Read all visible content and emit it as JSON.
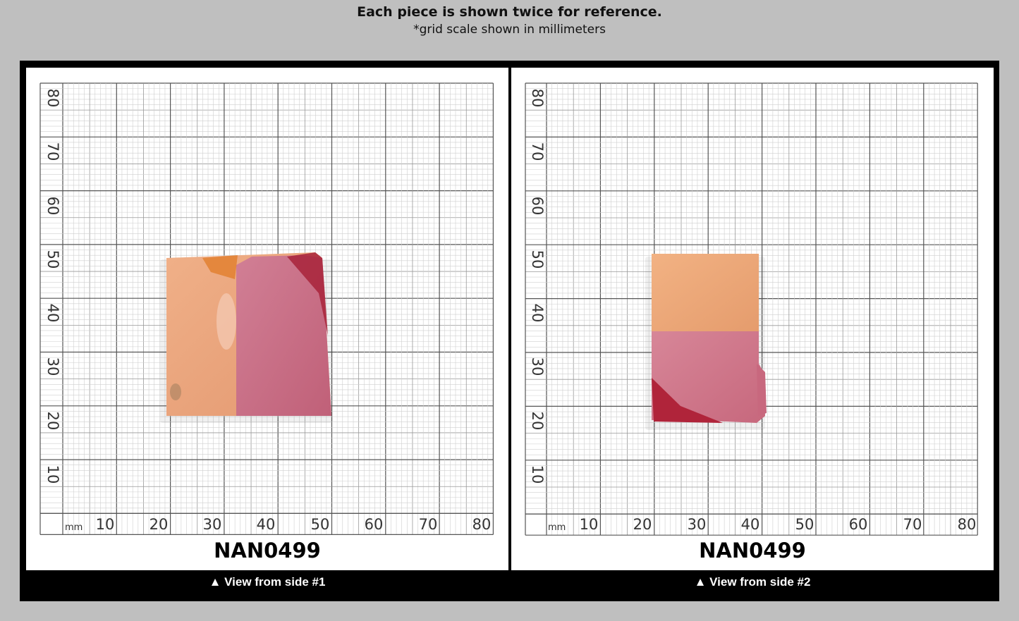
{
  "header": {
    "title": "Each piece is shown twice for reference.",
    "subtitle": "*grid scale shown in millimeters"
  },
  "grid": {
    "unit_label": "mm",
    "x_ticks": [
      "10",
      "20",
      "30",
      "40",
      "50",
      "60",
      "70",
      "80"
    ],
    "y_ticks": [
      "80",
      "70",
      "60",
      "50",
      "40",
      "30",
      "20",
      "10"
    ]
  },
  "panels": [
    {
      "code": "NAN0499",
      "caption": "▲ View from side #1"
    },
    {
      "code": "NAN0499",
      "caption": "▲ View from side #2"
    }
  ],
  "colors": {
    "background": "#bfbfbf",
    "frame": "#000000",
    "panel": "#ffffff",
    "stone_orange": "#eaa27a",
    "stone_pink": "#c8687e",
    "stone_red": "#b0243a"
  }
}
